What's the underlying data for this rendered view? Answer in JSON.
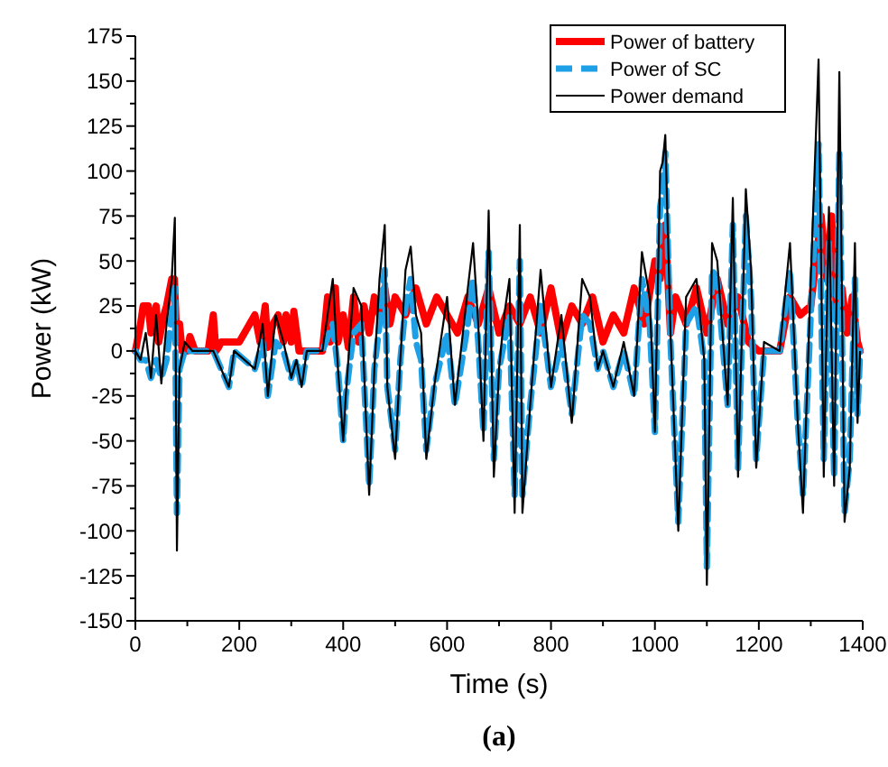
{
  "chart_data": {
    "type": "line",
    "xlabel": "Time (s)",
    "ylabel": "Power (kW)",
    "annotations": [
      "(a)"
    ],
    "xlim": [
      0,
      1400
    ],
    "ylim": [
      -150,
      175
    ],
    "xticks": [
      0,
      {
        "value": 100,
        "label": null
      },
      200,
      {
        "value": 300,
        "label": null
      },
      400,
      {
        "value": 500,
        "label": null
      },
      600,
      {
        "value": 700,
        "label": null
      },
      800,
      {
        "value": 900,
        "label": null
      },
      1000,
      {
        "value": 1100,
        "label": null
      },
      1200,
      {
        "value": 1300,
        "label": null
      },
      1400
    ],
    "yticks": [
      -150,
      {
        "value": -137.5,
        "label": null
      },
      -125,
      {
        "value": -112.5,
        "label": null
      },
      -100,
      {
        "value": -87.5,
        "label": null
      },
      -75,
      {
        "value": -62.5,
        "label": null
      },
      -50,
      {
        "value": -37.5,
        "label": null
      },
      -25,
      {
        "value": -12.5,
        "label": null
      },
      0,
      {
        "value": 12.5,
        "label": null
      },
      25,
      {
        "value": 37.5,
        "label": null
      },
      50,
      {
        "value": 62.5,
        "label": null
      },
      75,
      {
        "value": 87.5,
        "label": null
      },
      100,
      {
        "value": 112.5,
        "label": null
      },
      125,
      {
        "value": 137.5,
        "label": null
      },
      150,
      {
        "value": 162.5,
        "label": null
      },
      175
    ],
    "grid": false,
    "legend": "top right",
    "series": [
      {
        "name": "Power of battery",
        "color": "#ff0000",
        "line_style": "solid",
        "x": [
          0,
          10,
          15,
          25,
          30,
          40,
          45,
          55,
          60,
          70,
          75,
          80,
          85,
          90,
          100,
          105,
          115,
          120,
          140,
          150,
          155,
          160,
          165,
          200,
          210,
          230,
          240,
          250,
          255,
          265,
          275,
          285,
          290,
          300,
          305,
          315,
          320,
          335,
          340,
          350,
          360,
          370,
          375,
          385,
          390,
          400,
          410,
          420,
          430,
          440,
          450,
          460,
          470,
          480,
          490,
          500,
          520,
          540,
          560,
          580,
          600,
          620,
          640,
          660,
          680,
          700,
          720,
          740,
          760,
          780,
          800,
          820,
          840,
          860,
          880,
          900,
          920,
          940,
          960,
          980,
          1000,
          1010,
          1020,
          1030,
          1040,
          1060,
          1080,
          1100,
          1120,
          1140,
          1160,
          1180,
          1200,
          1220,
          1240,
          1260,
          1280,
          1300,
          1310,
          1320,
          1330,
          1340,
          1350,
          1360,
          1370,
          1380,
          1390,
          1395
        ],
        "values": [
          0,
          15,
          25,
          25,
          10,
          25,
          5,
          20,
          25,
          40,
          40,
          5,
          15,
          0,
          0,
          8,
          0,
          0,
          0,
          20,
          0,
          2,
          5,
          5,
          10,
          20,
          5,
          25,
          2,
          15,
          20,
          5,
          20,
          5,
          22,
          0,
          0,
          0,
          0,
          0,
          0,
          30,
          5,
          35,
          5,
          20,
          2,
          30,
          5,
          25,
          10,
          30,
          20,
          35,
          15,
          30,
          20,
          35,
          15,
          30,
          20,
          10,
          30,
          15,
          35,
          10,
          25,
          15,
          30,
          10,
          35,
          5,
          25,
          15,
          30,
          5,
          20,
          10,
          35,
          15,
          50,
          40,
          70,
          10,
          30,
          15,
          35,
          10,
          40,
          15,
          30,
          5,
          0,
          0,
          0,
          30,
          20,
          25,
          50,
          75,
          40,
          75,
          20,
          35,
          10,
          30,
          5,
          0
        ]
      },
      {
        "name": "Power of SC",
        "color": "#1ea0e6",
        "line_style": "dashed",
        "x": [
          0,
          10,
          20,
          30,
          40,
          50,
          60,
          70,
          76,
          80,
          85,
          95,
          110,
          150,
          180,
          190,
          230,
          245,
          255,
          270,
          285,
          300,
          310,
          320,
          330,
          360,
          380,
          390,
          400,
          405,
          420,
          435,
          450,
          460,
          470,
          480,
          485,
          500,
          510,
          520,
          530,
          540,
          550,
          560,
          575,
          600,
          615,
          640,
          650,
          660,
          670,
          680,
          690,
          700,
          710,
          720,
          730,
          740,
          745,
          760,
          780,
          800,
          820,
          840,
          860,
          875,
          890,
          900,
          920,
          940,
          960,
          975,
          990,
          1000,
          1010,
          1015,
          1020,
          1030,
          1045,
          1060,
          1080,
          1095,
          1100,
          1110,
          1120,
          1140,
          1150,
          1160,
          1175,
          1185,
          1195,
          1210,
          1240,
          1260,
          1275,
          1285,
          1300,
          1315,
          1325,
          1335,
          1345,
          1355,
          1365,
          1375,
          1385,
          1390,
          1395
        ],
        "values": [
          0,
          -5,
          -5,
          -15,
          -5,
          -15,
          -5,
          20,
          35,
          -90,
          -10,
          0,
          0,
          0,
          -20,
          0,
          -10,
          5,
          -25,
          5,
          0,
          -15,
          -5,
          -20,
          0,
          0,
          15,
          -10,
          -50,
          -25,
          10,
          15,
          -75,
          -10,
          15,
          45,
          -20,
          -55,
          -5,
          25,
          40,
          5,
          -5,
          -55,
          -20,
          10,
          -30,
          15,
          40,
          5,
          -45,
          55,
          -60,
          -10,
          5,
          20,
          -80,
          50,
          -80,
          -30,
          25,
          -20,
          5,
          -35,
          20,
          15,
          -10,
          0,
          -20,
          0,
          -25,
          40,
          15,
          -45,
          80,
          90,
          110,
          5,
          -95,
          15,
          25,
          -5,
          -120,
          45,
          40,
          -30,
          70,
          -65,
          75,
          30,
          -60,
          0,
          0,
          45,
          -40,
          -80,
          20,
          115,
          -60,
          60,
          -70,
          110,
          -90,
          -60,
          40,
          -35,
          0
        ]
      },
      {
        "name": "Power demand",
        "color": "#000000",
        "line_style": "solid",
        "x": [
          0,
          10,
          20,
          30,
          40,
          50,
          60,
          70,
          76,
          80,
          85,
          95,
          110,
          150,
          180,
          190,
          230,
          245,
          255,
          270,
          285,
          300,
          310,
          320,
          330,
          360,
          380,
          390,
          400,
          405,
          420,
          435,
          450,
          460,
          470,
          480,
          485,
          500,
          510,
          520,
          530,
          540,
          550,
          560,
          575,
          600,
          615,
          640,
          650,
          660,
          670,
          680,
          690,
          700,
          710,
          720,
          730,
          740,
          745,
          760,
          780,
          800,
          820,
          840,
          860,
          875,
          890,
          900,
          920,
          940,
          960,
          975,
          990,
          1000,
          1010,
          1015,
          1020,
          1030,
          1045,
          1060,
          1080,
          1095,
          1100,
          1110,
          1120,
          1140,
          1150,
          1160,
          1175,
          1185,
          1195,
          1210,
          1240,
          1260,
          1275,
          1285,
          1300,
          1315,
          1325,
          1335,
          1345,
          1355,
          1365,
          1375,
          1385,
          1390,
          1395
        ],
        "values": [
          0,
          -5,
          10,
          -15,
          20,
          -18,
          15,
          40,
          74,
          -111,
          -10,
          5,
          0,
          0,
          -20,
          0,
          -10,
          15,
          -25,
          20,
          5,
          -15,
          -5,
          -20,
          0,
          0,
          40,
          -10,
          -50,
          -25,
          35,
          25,
          -80,
          -10,
          40,
          70,
          -20,
          -60,
          -5,
          45,
          58,
          20,
          10,
          -60,
          -20,
          30,
          -30,
          35,
          60,
          15,
          -50,
          78,
          -70,
          -10,
          20,
          40,
          -90,
          70,
          -90,
          -30,
          45,
          -20,
          20,
          -40,
          40,
          30,
          -10,
          0,
          -20,
          5,
          -25,
          55,
          30,
          -45,
          100,
          105,
          120,
          10,
          -100,
          30,
          40,
          -5,
          -130,
          60,
          50,
          -30,
          85,
          -70,
          90,
          45,
          -65,
          5,
          0,
          60,
          -40,
          -90,
          40,
          162,
          -70,
          80,
          -75,
          155,
          -95,
          -65,
          60,
          -40,
          0
        ]
      }
    ]
  }
}
